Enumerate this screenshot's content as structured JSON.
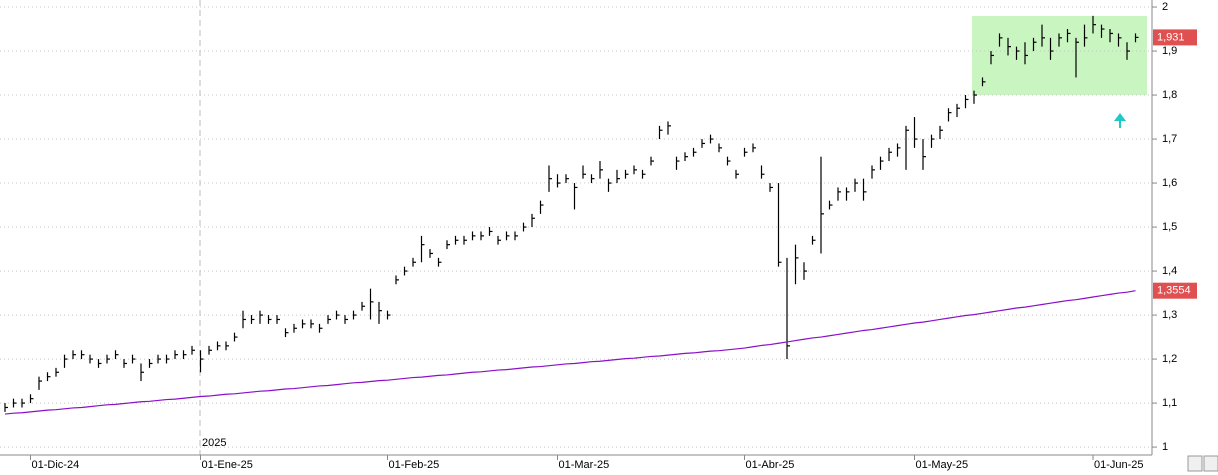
{
  "chart_data": {
    "type": "ohlc",
    "categories": [
      null,
      null,
      null,
      "01-Dic-24",
      null,
      null,
      null,
      null,
      null,
      null,
      null,
      null,
      null,
      null,
      null,
      null,
      null,
      null,
      null,
      null,
      null,
      null,
      null,
      "01-Ene-25",
      null,
      null,
      null,
      null,
      null,
      null,
      null,
      null,
      null,
      null,
      null,
      null,
      null,
      null,
      null,
      null,
      null,
      null,
      null,
      null,
      null,
      "01-Feb-25",
      null,
      null,
      null,
      null,
      null,
      null,
      null,
      null,
      null,
      null,
      null,
      null,
      null,
      null,
      null,
      null,
      null,
      null,
      null,
      "01-Mar-25",
      null,
      null,
      null,
      null,
      null,
      null,
      null,
      null,
      null,
      null,
      null,
      null,
      null,
      null,
      null,
      null,
      null,
      null,
      null,
      null,
      null,
      "01-Abr-25",
      null,
      null,
      null,
      null,
      null,
      null,
      null,
      null,
      null,
      null,
      null,
      null,
      null,
      null,
      null,
      null,
      null,
      null,
      null,
      "01-May-25",
      null,
      null,
      null,
      null,
      null,
      null,
      null,
      null,
      null,
      null,
      null,
      null,
      null,
      null,
      null,
      null,
      null,
      null,
      null,
      null,
      "01-Jun-25",
      null,
      null,
      null,
      null,
      null
    ],
    "year_label": "2025",
    "ylim": [
      0.982,
      2.016
    ],
    "yticks": [
      {
        "value": 1,
        "label": "1"
      },
      {
        "value": 1.1,
        "label": "1,1"
      },
      {
        "value": 1.2,
        "label": "1,2"
      },
      {
        "value": 1.3,
        "label": "1,3"
      },
      {
        "value": 1.4,
        "label": "1,4"
      },
      {
        "value": 1.5,
        "label": "1,5"
      },
      {
        "value": 1.6,
        "label": "1,6"
      },
      {
        "value": 1.7,
        "label": "1,7"
      },
      {
        "value": 1.8,
        "label": "1,8"
      },
      {
        "value": 1.9,
        "label": "1,9"
      },
      2
    ],
    "grid": true,
    "series": [
      {
        "type": "ohlc",
        "color": "#000000",
        "tag_color": "#e05050",
        "high": [
          1.1,
          1.11,
          1.11,
          1.12,
          1.16,
          1.17,
          1.18,
          1.21,
          1.22,
          1.22,
          1.21,
          1.2,
          1.21,
          1.22,
          1.2,
          1.21,
          1.19,
          1.2,
          1.21,
          1.21,
          1.22,
          1.22,
          1.23,
          1.22,
          1.23,
          1.24,
          1.24,
          1.26,
          1.31,
          1.3,
          1.31,
          1.3,
          1.3,
          1.27,
          1.28,
          1.29,
          1.29,
          1.28,
          1.3,
          1.31,
          1.3,
          1.31,
          1.33,
          1.36,
          1.33,
          1.31,
          1.39,
          1.41,
          1.43,
          1.48,
          1.45,
          1.43,
          1.47,
          1.48,
          1.48,
          1.49,
          1.49,
          1.5,
          1.48,
          1.49,
          1.49,
          1.51,
          1.53,
          1.56,
          1.64,
          1.62,
          1.62,
          1.6,
          1.64,
          1.62,
          1.65,
          1.61,
          1.63,
          1.63,
          1.64,
          1.63,
          1.66,
          1.73,
          1.74,
          1.66,
          1.67,
          1.68,
          1.7,
          1.71,
          1.69,
          1.66,
          1.63,
          1.68,
          1.69,
          1.64,
          1.6,
          1.6,
          1.43,
          1.46,
          1.42,
          1.48,
          1.66,
          1.56,
          1.59,
          1.59,
          1.61,
          1.61,
          1.64,
          1.66,
          1.68,
          1.69,
          1.73,
          1.75,
          1.7,
          1.71,
          1.73,
          1.77,
          1.78,
          1.8,
          1.81,
          1.84,
          1.9,
          1.94,
          1.93,
          1.91,
          1.92,
          1.93,
          1.96,
          1.93,
          1.94,
          1.95,
          1.93,
          1.96,
          1.98,
          1.96,
          1.95,
          1.94,
          1.92,
          1.94
        ],
        "low": [
          1.08,
          1.09,
          1.09,
          1.1,
          1.13,
          1.15,
          1.16,
          1.18,
          1.2,
          1.2,
          1.19,
          1.18,
          1.19,
          1.2,
          1.18,
          1.19,
          1.15,
          1.18,
          1.19,
          1.19,
          1.2,
          1.2,
          1.21,
          1.17,
          1.21,
          1.22,
          1.22,
          1.24,
          1.27,
          1.28,
          1.28,
          1.28,
          1.28,
          1.25,
          1.26,
          1.27,
          1.27,
          1.26,
          1.28,
          1.29,
          1.28,
          1.29,
          1.31,
          1.29,
          1.28,
          1.29,
          1.37,
          1.39,
          1.41,
          1.42,
          1.43,
          1.41,
          1.45,
          1.46,
          1.46,
          1.47,
          1.47,
          1.48,
          1.46,
          1.47,
          1.47,
          1.49,
          1.5,
          1.53,
          1.58,
          1.59,
          1.6,
          1.54,
          1.61,
          1.6,
          1.61,
          1.58,
          1.6,
          1.61,
          1.62,
          1.61,
          1.64,
          1.7,
          1.71,
          1.63,
          1.65,
          1.66,
          1.68,
          1.69,
          1.67,
          1.64,
          1.61,
          1.66,
          1.67,
          1.61,
          1.58,
          1.41,
          1.2,
          1.37,
          1.38,
          1.46,
          1.44,
          1.54,
          1.56,
          1.56,
          1.58,
          1.56,
          1.61,
          1.63,
          1.65,
          1.66,
          1.63,
          1.68,
          1.63,
          1.68,
          1.7,
          1.74,
          1.75,
          1.77,
          1.78,
          1.82,
          1.87,
          1.91,
          1.89,
          1.88,
          1.87,
          1.9,
          1.91,
          1.88,
          1.91,
          1.92,
          1.84,
          1.91,
          1.94,
          1.93,
          1.92,
          1.91,
          1.88,
          1.92
        ],
        "values": [
          1.09,
          1.1,
          1.1,
          1.11,
          1.15,
          1.16,
          1.17,
          1.2,
          1.21,
          1.21,
          1.2,
          1.19,
          1.2,
          1.21,
          1.19,
          1.2,
          1.17,
          1.19,
          1.2,
          1.2,
          1.21,
          1.21,
          1.22,
          1.2,
          1.22,
          1.23,
          1.23,
          1.25,
          1.29,
          1.29,
          1.3,
          1.29,
          1.29,
          1.26,
          1.27,
          1.28,
          1.28,
          1.27,
          1.29,
          1.3,
          1.29,
          1.3,
          1.32,
          1.33,
          1.31,
          1.3,
          1.38,
          1.4,
          1.42,
          1.46,
          1.44,
          1.42,
          1.46,
          1.47,
          1.47,
          1.48,
          1.48,
          1.49,
          1.47,
          1.48,
          1.48,
          1.5,
          1.52,
          1.55,
          1.61,
          1.6,
          1.61,
          1.59,
          1.62,
          1.61,
          1.63,
          1.6,
          1.61,
          1.62,
          1.63,
          1.62,
          1.65,
          1.72,
          1.73,
          1.65,
          1.66,
          1.67,
          1.69,
          1.7,
          1.68,
          1.65,
          1.62,
          1.67,
          1.68,
          1.62,
          1.59,
          1.42,
          1.23,
          1.43,
          1.4,
          1.47,
          1.53,
          1.55,
          1.58,
          1.58,
          1.6,
          1.58,
          1.63,
          1.65,
          1.67,
          1.68,
          1.72,
          1.7,
          1.66,
          1.7,
          1.72,
          1.76,
          1.77,
          1.79,
          1.8,
          1.83,
          1.89,
          1.93,
          1.91,
          1.9,
          1.89,
          1.92,
          1.93,
          1.9,
          1.93,
          1.94,
          1.92,
          1.93,
          1.96,
          1.95,
          1.94,
          1.93,
          1.9,
          1.931
        ],
        "value_labels": [
          null,
          null,
          null,
          null,
          null,
          null,
          null,
          null,
          null,
          null,
          null,
          null,
          null,
          null,
          null,
          null,
          null,
          null,
          null,
          null,
          null,
          null,
          null,
          null,
          null,
          null,
          null,
          null,
          null,
          null,
          null,
          null,
          null,
          null,
          null,
          null,
          null,
          null,
          null,
          null,
          null,
          null,
          null,
          null,
          null,
          null,
          null,
          null,
          null,
          null,
          null,
          null,
          null,
          null,
          null,
          null,
          null,
          null,
          null,
          null,
          null,
          null,
          null,
          null,
          null,
          null,
          null,
          null,
          null,
          null,
          null,
          null,
          null,
          null,
          null,
          null,
          null,
          null,
          null,
          null,
          null,
          null,
          null,
          null,
          null,
          null,
          null,
          null,
          null,
          null,
          null,
          null,
          null,
          null,
          null,
          null,
          null,
          null,
          null,
          null,
          null,
          null,
          null,
          null,
          null,
          null,
          null,
          null,
          null,
          null,
          null,
          null,
          null,
          null,
          null,
          null,
          null,
          null,
          null,
          null,
          null,
          null,
          null,
          null,
          null,
          null,
          null,
          null,
          null,
          null,
          null,
          null,
          null,
          "1,931"
        ]
      },
      {
        "type": "line",
        "color": "#8a10c8",
        "tag_color": "#e05050",
        "values": [
          1.075,
          1.077,
          1.078,
          1.08,
          1.082,
          1.084,
          1.085,
          1.087,
          1.089,
          1.09,
          1.092,
          1.094,
          1.096,
          1.097,
          1.099,
          1.101,
          1.103,
          1.104,
          1.106,
          1.108,
          1.109,
          1.111,
          1.113,
          1.115,
          1.116,
          1.118,
          1.12,
          1.121,
          1.123,
          1.125,
          1.127,
          1.128,
          1.13,
          1.132,
          1.133,
          1.135,
          1.137,
          1.139,
          1.14,
          1.142,
          1.144,
          1.146,
          1.147,
          1.149,
          1.151,
          1.152,
          1.154,
          1.156,
          1.158,
          1.159,
          1.161,
          1.163,
          1.164,
          1.166,
          1.168,
          1.17,
          1.171,
          1.173,
          1.175,
          1.176,
          1.178,
          1.18,
          1.182,
          1.183,
          1.185,
          1.187,
          1.189,
          1.19,
          1.192,
          1.194,
          1.195,
          1.197,
          1.199,
          1.201,
          1.202,
          1.204,
          1.206,
          1.207,
          1.209,
          1.211,
          1.213,
          1.214,
          1.216,
          1.218,
          1.219,
          1.221,
          1.223,
          1.225,
          1.228,
          1.231,
          1.233,
          1.236,
          1.239,
          1.242,
          1.245,
          1.248,
          1.25,
          1.253,
          1.256,
          1.259,
          1.262,
          1.265,
          1.267,
          1.27,
          1.273,
          1.276,
          1.279,
          1.282,
          1.284,
          1.287,
          1.29,
          1.293,
          1.296,
          1.299,
          1.301,
          1.304,
          1.307,
          1.31,
          1.313,
          1.316,
          1.318,
          1.321,
          1.324,
          1.327,
          1.33,
          1.333,
          1.335,
          1.338,
          1.341,
          1.344,
          1.347,
          1.35,
          1.352,
          1.3554
        ],
        "value_labels": [
          null,
          null,
          null,
          null,
          null,
          null,
          null,
          null,
          null,
          null,
          null,
          null,
          null,
          null,
          null,
          null,
          null,
          null,
          null,
          null,
          null,
          null,
          null,
          null,
          null,
          null,
          null,
          null,
          null,
          null,
          null,
          null,
          null,
          null,
          null,
          null,
          null,
          null,
          null,
          null,
          null,
          null,
          null,
          null,
          null,
          null,
          null,
          null,
          null,
          null,
          null,
          null,
          null,
          null,
          null,
          null,
          null,
          null,
          null,
          null,
          null,
          null,
          null,
          null,
          null,
          null,
          null,
          null,
          null,
          null,
          null,
          null,
          null,
          null,
          null,
          null,
          null,
          null,
          null,
          null,
          null,
          null,
          null,
          null,
          null,
          null,
          null,
          null,
          null,
          null,
          null,
          null,
          null,
          null,
          null,
          null,
          null,
          null,
          null,
          null,
          null,
          null,
          null,
          null,
          null,
          null,
          null,
          null,
          null,
          null,
          null,
          null,
          null,
          null,
          null,
          null,
          null,
          null,
          null,
          null,
          null,
          null,
          null,
          null,
          null,
          null,
          null,
          null,
          null,
          null,
          null,
          null,
          null,
          "1,3554"
        ]
      }
    ]
  }
}
